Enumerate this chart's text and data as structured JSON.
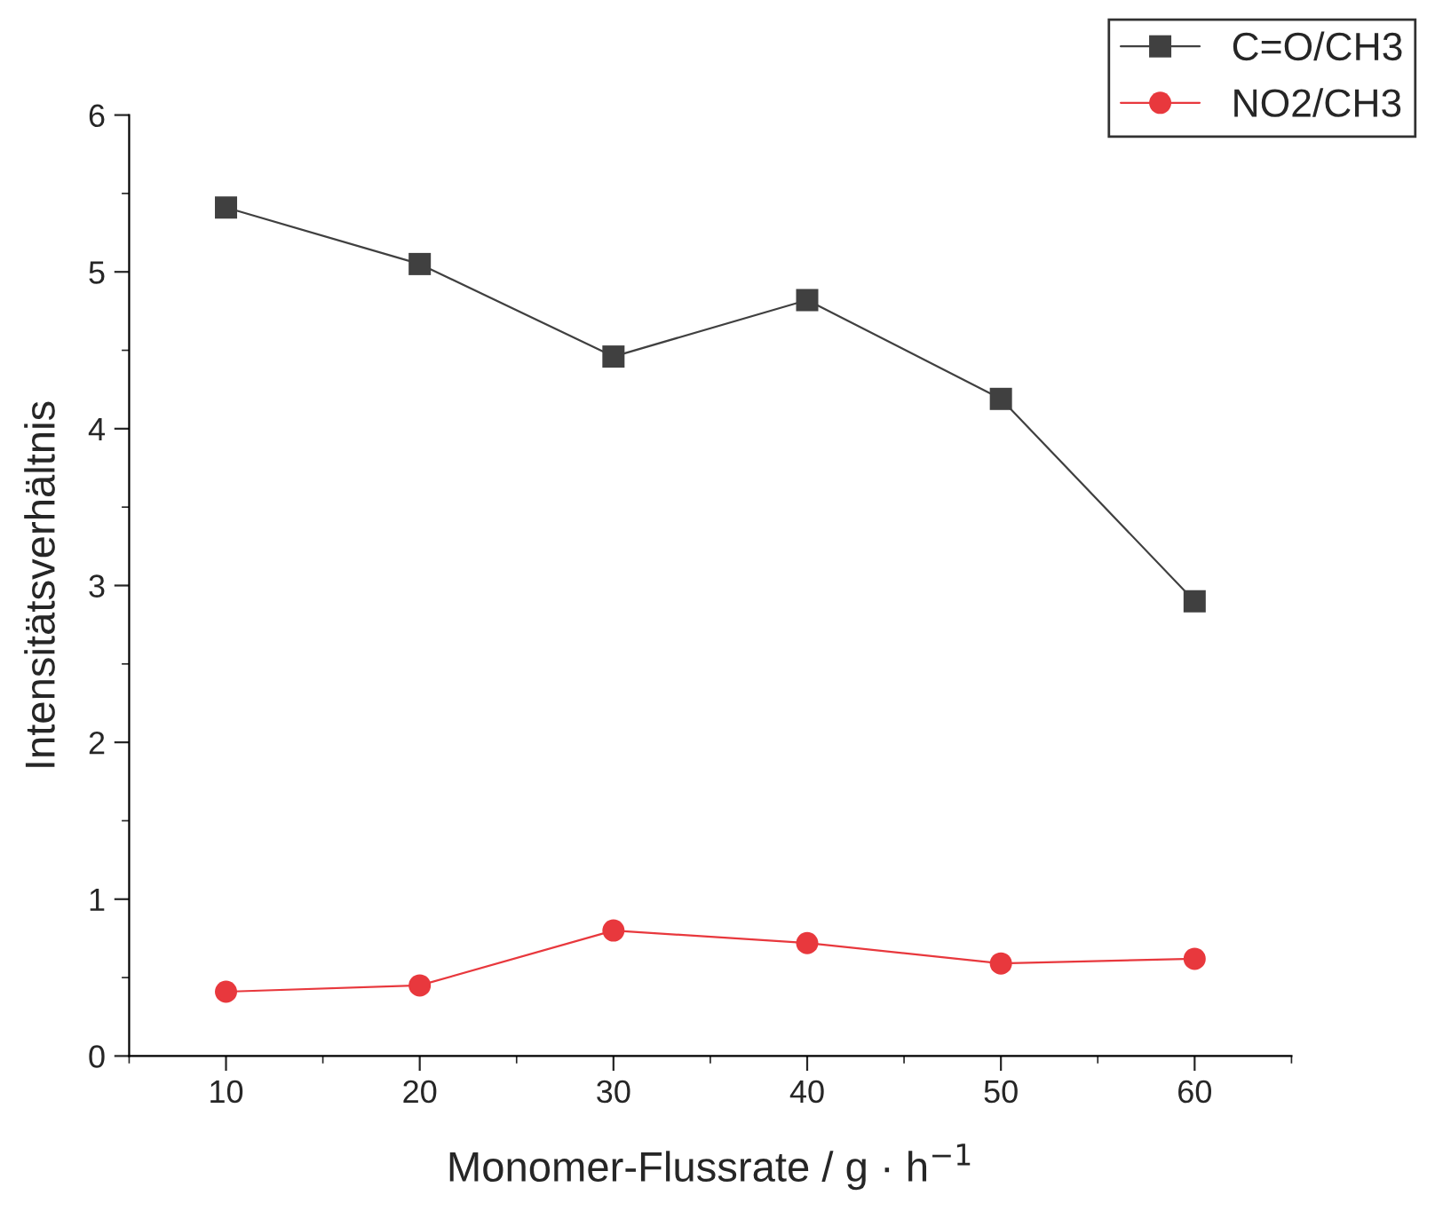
{
  "chart_data": {
    "type": "line",
    "xlabel": "Monomer-Flussrate / g · h$^{−1}$",
    "ylabel": "Intensitätsverhältnis",
    "x": [
      10,
      20,
      30,
      40,
      50,
      60
    ],
    "series": [
      {
        "name": "C=O/CH3",
        "color": "#404040",
        "marker": "square",
        "values": [
          5.41,
          5.05,
          4.46,
          4.82,
          4.19,
          2.9
        ]
      },
      {
        "name": "NO2/CH3",
        "color": "#e8383d",
        "marker": "circle",
        "values": [
          0.41,
          0.45,
          0.8,
          0.72,
          0.59,
          0.62
        ]
      }
    ],
    "xlim": [
      5,
      65
    ],
    "xticks": [
      10,
      20,
      30,
      40,
      50,
      60
    ],
    "ylim": [
      0,
      6
    ],
    "yticks": [
      0,
      1,
      2,
      3,
      4,
      5,
      6
    ],
    "grid": false,
    "legend": "top right",
    "line_style": "solid"
  }
}
